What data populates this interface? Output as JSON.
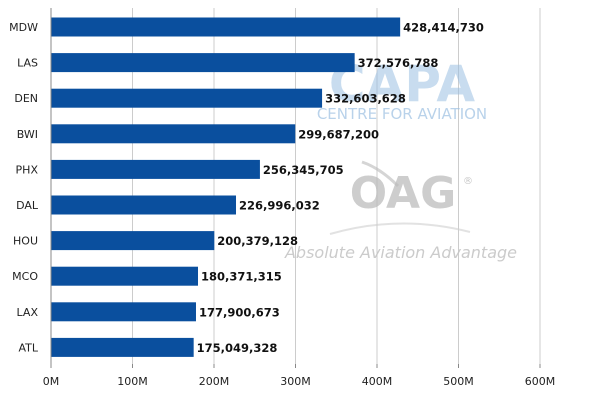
{
  "chart_data": {
    "type": "bar",
    "orientation": "horizontal",
    "categories": [
      "MDW",
      "LAS",
      "DEN",
      "BWI",
      "PHX",
      "DAL",
      "HOU",
      "MCO",
      "LAX",
      "ATL"
    ],
    "values": [
      428414730,
      372576788,
      332603628,
      299687200,
      256345705,
      226996032,
      200379128,
      180371315,
      177900673,
      175049328
    ],
    "value_labels": [
      "428,414,730",
      "372,576,788",
      "332,603,628",
      "299,687,200",
      "256,345,705",
      "226,996,032",
      "200,379,128",
      "180,371,315",
      "177,900,673",
      "175,049,328"
    ],
    "x_ticks": [
      0,
      100000000,
      200000000,
      300000000,
      400000000,
      500000000,
      600000000
    ],
    "x_tick_labels": [
      "0M",
      "100M",
      "200M",
      "300M",
      "400M",
      "500M",
      "600M"
    ],
    "xlim": [
      0,
      600000000
    ],
    "title": "",
    "xlabel": "",
    "ylabel": "",
    "grid": "vertical",
    "legend": "none",
    "colors": {
      "bar": "#0a4f9e",
      "grid": "#cccccc",
      "axis": "#888888"
    }
  },
  "watermark": {
    "capa_logo": "CAPA",
    "capa_subtitle": "CENTRE FOR AVIATION",
    "oag_logo": "OAG",
    "oag_registered": "®",
    "oag_tagline": "Absolute Aviation Advantage",
    "colors": {
      "capa": "#9cc0e2",
      "oag": "#b9b9b9",
      "tagline": "#c6c6c6"
    }
  }
}
